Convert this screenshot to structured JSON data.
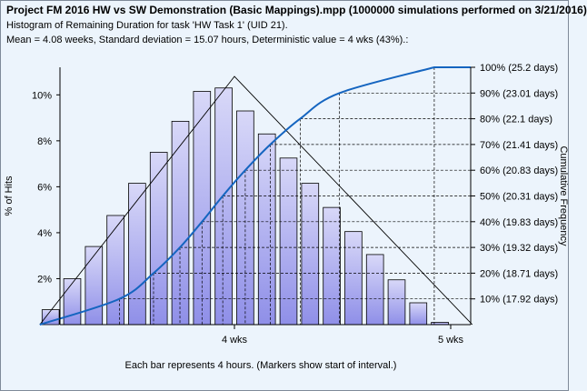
{
  "header": {
    "title": "Project FM 2016 HW vs SW Demonstration (Basic Mappings).mpp (1000000 simulations performed on 3/21/2016)",
    "subtitle": "Histogram of Remaining Duration for task 'HW Task 1' (UID 21).",
    "stats": "Mean = 4.08 weeks, Standard deviation = 15.07 hours, Deterministic value = 4 wks (43%).:"
  },
  "chart_data": {
    "type": "bar",
    "ylabel": "% of Hits",
    "y2label": "Cumulative Frequency",
    "xlabel": "Each bar represents 4 hours. (Markers show start of interval.)",
    "ylim": [
      0,
      11.2
    ],
    "yticks": [
      "2%",
      "4%",
      "6%",
      "8%",
      "10%"
    ],
    "ytick_values": [
      2,
      4,
      6,
      8,
      10
    ],
    "xticks": [
      {
        "label": "4 wks",
        "pos": 0
      },
      {
        "label": "5 wks",
        "pos": 10
      }
    ],
    "x_unit_note": "pos = hours offset / 4 from 4 wks",
    "values": [
      0.65,
      2.0,
      3.4,
      4.75,
      6.15,
      7.5,
      8.85,
      10.15,
      10.3,
      9.3,
      8.3,
      7.25,
      6.15,
      5.1,
      4.05,
      3.05,
      1.95,
      0.95,
      0.1
    ],
    "bar_start_pos": -9,
    "triangle": {
      "start": -9,
      "peak": 0,
      "end": 11,
      "peak_value": 10.8
    },
    "cumulative_series": {
      "name": "Cumulative Frequency",
      "ylim": [
        0,
        100
      ]
    },
    "percentiles": [
      {
        "label": "10% (17.92 days)",
        "pct": 10,
        "pos": -5.32
      },
      {
        "label": "20% (18.71 days)",
        "pct": 20,
        "pos": -3.74
      },
      {
        "label": "30% (19.32 days)",
        "pct": 30,
        "pos": -2.52
      },
      {
        "label": "40% (19.83 days)",
        "pct": 40,
        "pos": -1.5
      },
      {
        "label": "50% (20.31 days)",
        "pct": 50,
        "pos": -0.54
      },
      {
        "label": "60% (20.83 days)",
        "pct": 60,
        "pos": 0.5
      },
      {
        "label": "70% (21.41 days)",
        "pct": 70,
        "pos": 1.66
      },
      {
        "label": "80% (22.1 days)",
        "pct": 80,
        "pos": 3.04
      },
      {
        "label": "90% (23.01 days)",
        "pct": 90,
        "pos": 4.86
      },
      {
        "label": "100% (25.2 days)",
        "pct": 100,
        "pos": 9.24
      }
    ],
    "colors": {
      "bar_fill_top": "#d8d8f8",
      "bar_fill_bottom": "#8f8fe8",
      "bar_stroke": "#000000",
      "curve": "#1565c0",
      "triangle": "#000000",
      "axis": "#000000"
    }
  }
}
